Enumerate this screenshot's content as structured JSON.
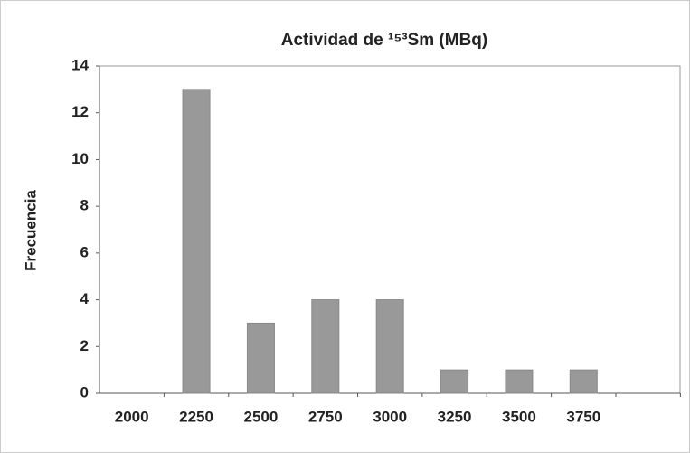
{
  "chart_data": {
    "type": "bar",
    "title": "Actividad de ¹⁵³Sm (MBq)",
    "y_label": "Frecuencia",
    "categories": [
      "2000",
      "2250",
      "2500",
      "2750",
      "3000",
      "3250",
      "3500",
      "3750"
    ],
    "values": [
      0,
      13,
      3,
      4,
      4,
      1,
      1,
      1
    ],
    "color": "#999999",
    "ylim": [
      0,
      14
    ],
    "yticks": [
      0,
      2,
      4,
      6,
      8,
      10,
      12,
      14
    ],
    "grid": false
  }
}
